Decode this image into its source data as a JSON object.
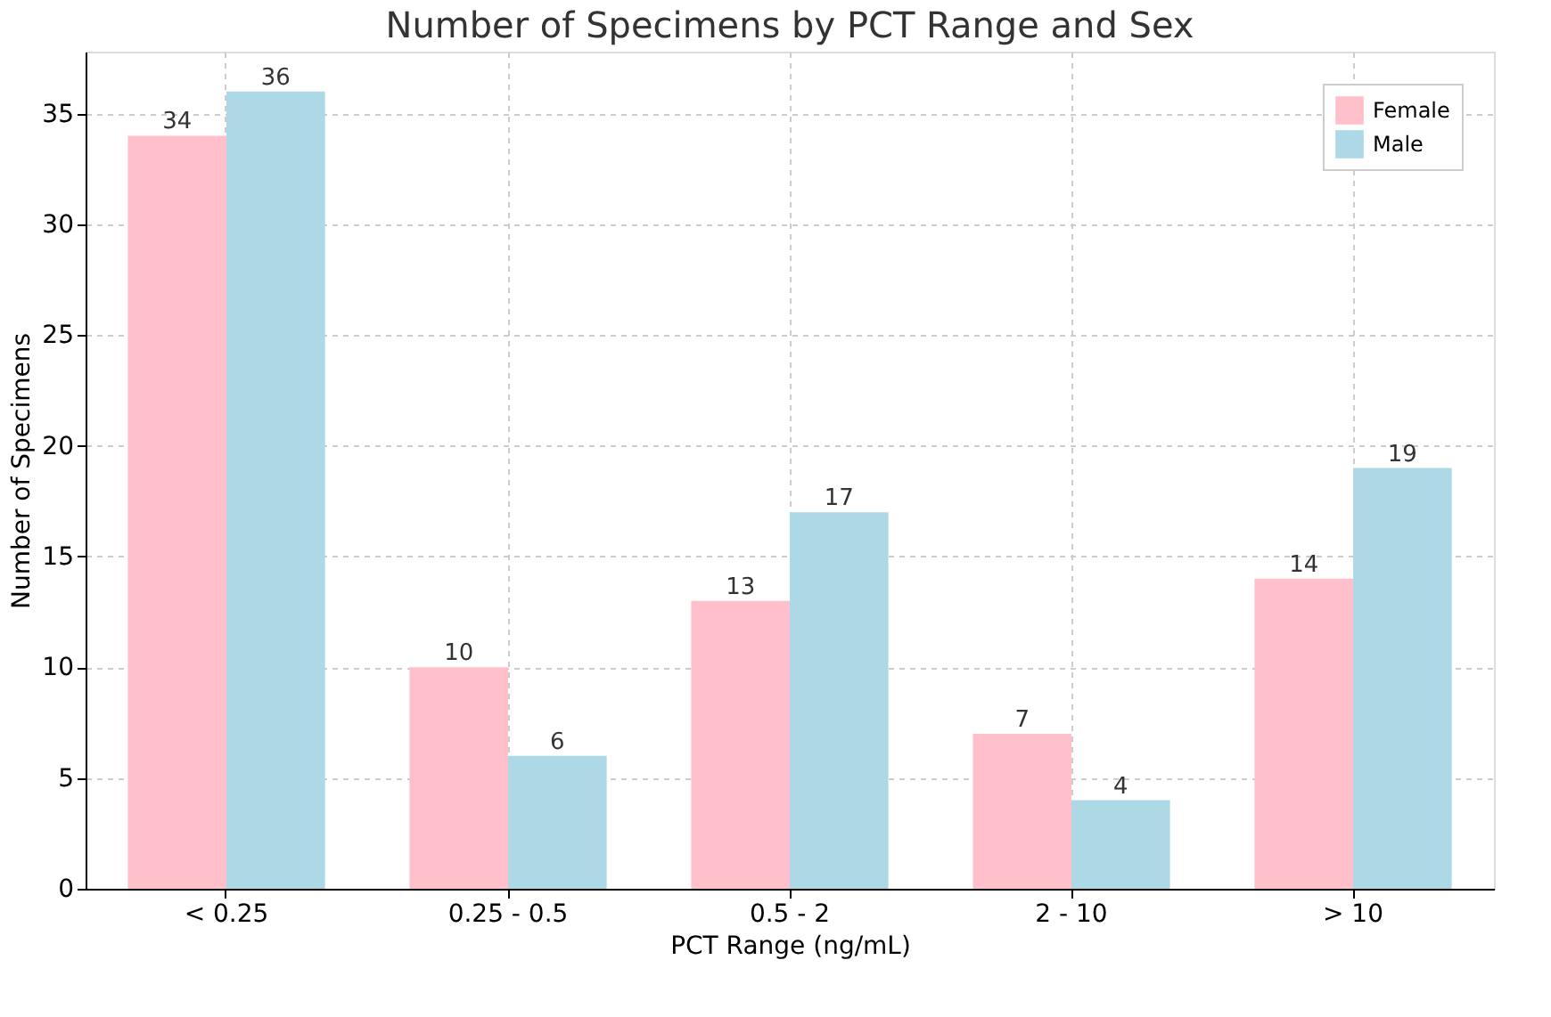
{
  "chart_data": {
    "type": "bar",
    "title": "Number of Specimens by PCT Range and Sex",
    "xlabel": "PCT Range (ng/mL)",
    "ylabel": "Number of Specimens",
    "categories": [
      "< 0.25",
      "0.25 - 0.5",
      "0.5 - 2",
      "2 - 10",
      "> 10"
    ],
    "series": [
      {
        "name": "Female",
        "color": "#ffc0cb",
        "values": [
          34,
          10,
          13,
          7,
          14
        ]
      },
      {
        "name": "Male",
        "color": "#add8e6",
        "values": [
          36,
          6,
          17,
          4,
          19
        ]
      }
    ],
    "ylim": [
      0,
      37.8
    ],
    "yticks": [
      0,
      5,
      10,
      15,
      20,
      25,
      30,
      35
    ],
    "grid": true,
    "legend": "top right",
    "data_labels": true
  }
}
